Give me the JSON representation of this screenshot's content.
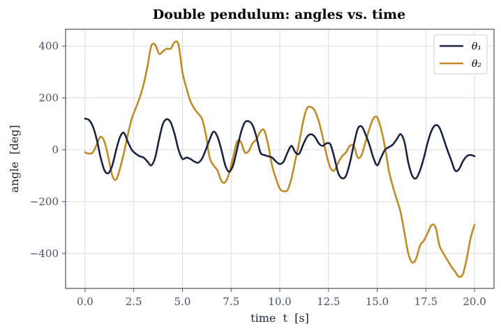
{
  "chart_data": {
    "type": "line",
    "title": "Double pendulum: angles vs. time",
    "xlabel": "time  t  [s]",
    "ylabel": "angle  [deg]",
    "xlim": [
      -1.0,
      21.0
    ],
    "ylim": [
      -535,
      465
    ],
    "xticks": [
      0.0,
      2.5,
      5.0,
      7.5,
      10.0,
      12.5,
      15.0,
      17.5,
      20.0
    ],
    "xtick_labels": [
      "0.0",
      "2.5",
      "5.0",
      "7.5",
      "10.0",
      "12.5",
      "15.0",
      "17.5",
      "20.0"
    ],
    "yticks": [
      -400,
      -200,
      0,
      200,
      400
    ],
    "ytick_labels": [
      "−400",
      "−200",
      "0",
      "200",
      "400"
    ],
    "grid": true,
    "legend_position": "top-right",
    "series": [
      {
        "name": "θ₁",
        "color": "#1b2340",
        "x": [
          0.0,
          0.2,
          0.4,
          0.6,
          0.8,
          1.0,
          1.2,
          1.4,
          1.6,
          1.8,
          2.0,
          2.2,
          2.4,
          2.6,
          2.8,
          3.0,
          3.2,
          3.4,
          3.6,
          3.8,
          4.0,
          4.2,
          4.4,
          4.6,
          4.8,
          5.0,
          5.2,
          5.4,
          5.6,
          5.8,
          6.0,
          6.2,
          6.4,
          6.6,
          6.8,
          7.0,
          7.2,
          7.4,
          7.6,
          7.8,
          8.0,
          8.2,
          8.4,
          8.6,
          8.8,
          9.0,
          9.2,
          9.4,
          9.6,
          9.8,
          10.0,
          10.2,
          10.4,
          10.6,
          10.8,
          11.0,
          11.2,
          11.4,
          11.6,
          11.8,
          12.0,
          12.2,
          12.4,
          12.6,
          12.8,
          13.0,
          13.2,
          13.4,
          13.6,
          13.8,
          14.0,
          14.2,
          14.4,
          14.6,
          14.8,
          15.0,
          15.2,
          15.4,
          15.6,
          15.8,
          16.0,
          16.2,
          16.4,
          16.6,
          16.8,
          17.0,
          17.2,
          17.4,
          17.6,
          17.8,
          18.0,
          18.2,
          18.4,
          18.6,
          18.8,
          19.0,
          19.2,
          19.4,
          19.6,
          19.8,
          20.0
        ],
        "values": [
          120,
          115,
          90,
          40,
          -30,
          -80,
          -90,
          -60,
          0,
          50,
          65,
          30,
          0,
          -15,
          -25,
          -30,
          -45,
          -60,
          -30,
          40,
          100,
          118,
          105,
          60,
          0,
          -35,
          -30,
          -35,
          -45,
          -50,
          -35,
          0,
          40,
          70,
          50,
          0,
          -60,
          -85,
          -60,
          0,
          65,
          105,
          110,
          95,
          50,
          -10,
          -20,
          -25,
          -30,
          -45,
          -55,
          -45,
          -10,
          15,
          -10,
          -15,
          20,
          50,
          60,
          50,
          25,
          15,
          25,
          20,
          -30,
          -90,
          -110,
          -100,
          -50,
          20,
          80,
          90,
          60,
          20,
          -30,
          -60,
          -30,
          0,
          10,
          20,
          40,
          60,
          30,
          -50,
          -100,
          -110,
          -80,
          -30,
          30,
          75,
          95,
          85,
          45,
          0,
          -40,
          -80,
          -75,
          -45,
          -25,
          -20,
          -25
        ]
      },
      {
        "name": "θ₂",
        "color": "#c08a26",
        "x": [
          0.0,
          0.2,
          0.4,
          0.6,
          0.8,
          1.0,
          1.2,
          1.4,
          1.6,
          1.8,
          2.0,
          2.2,
          2.4,
          2.6,
          2.8,
          3.0,
          3.2,
          3.4,
          3.6,
          3.8,
          4.0,
          4.2,
          4.4,
          4.6,
          4.8,
          5.0,
          5.2,
          5.4,
          5.6,
          5.8,
          6.0,
          6.2,
          6.4,
          6.6,
          6.8,
          7.0,
          7.2,
          7.4,
          7.6,
          7.8,
          8.0,
          8.2,
          8.4,
          8.6,
          8.8,
          9.0,
          9.2,
          9.4,
          9.6,
          9.8,
          10.0,
          10.2,
          10.4,
          10.6,
          10.8,
          11.0,
          11.2,
          11.4,
          11.6,
          11.8,
          12.0,
          12.2,
          12.4,
          12.6,
          12.8,
          13.0,
          13.2,
          13.4,
          13.6,
          13.8,
          14.0,
          14.2,
          14.4,
          14.6,
          14.8,
          15.0,
          15.2,
          15.4,
          15.6,
          15.8,
          16.0,
          16.2,
          16.4,
          16.6,
          16.8,
          17.0,
          17.2,
          17.4,
          17.6,
          17.8,
          18.0,
          18.2,
          18.4,
          18.6,
          18.8,
          19.0,
          19.2,
          19.4,
          19.6,
          19.8,
          20.0
        ],
        "values": [
          -10,
          -15,
          -10,
          20,
          50,
          30,
          -30,
          -100,
          -115,
          -70,
          -10,
          60,
          120,
          160,
          200,
          250,
          320,
          400,
          405,
          370,
          380,
          390,
          390,
          415,
          405,
          300,
          240,
          190,
          160,
          140,
          120,
          60,
          -30,
          -60,
          -80,
          -120,
          -125,
          -90,
          -30,
          30,
          30,
          -10,
          -5,
          25,
          40,
          70,
          75,
          20,
          -60,
          -110,
          -150,
          -160,
          -155,
          -110,
          -40,
          30,
          110,
          160,
          165,
          150,
          110,
          50,
          -20,
          -70,
          -80,
          -50,
          -25,
          -10,
          15,
          15,
          -30,
          -20,
          30,
          80,
          120,
          125,
          80,
          10,
          -80,
          -140,
          -190,
          -240,
          -320,
          -400,
          -435,
          -420,
          -370,
          -350,
          -320,
          -290,
          -300,
          -370,
          -400,
          -425,
          -450,
          -470,
          -490,
          -480,
          -420,
          -340,
          -290
        ]
      }
    ]
  }
}
